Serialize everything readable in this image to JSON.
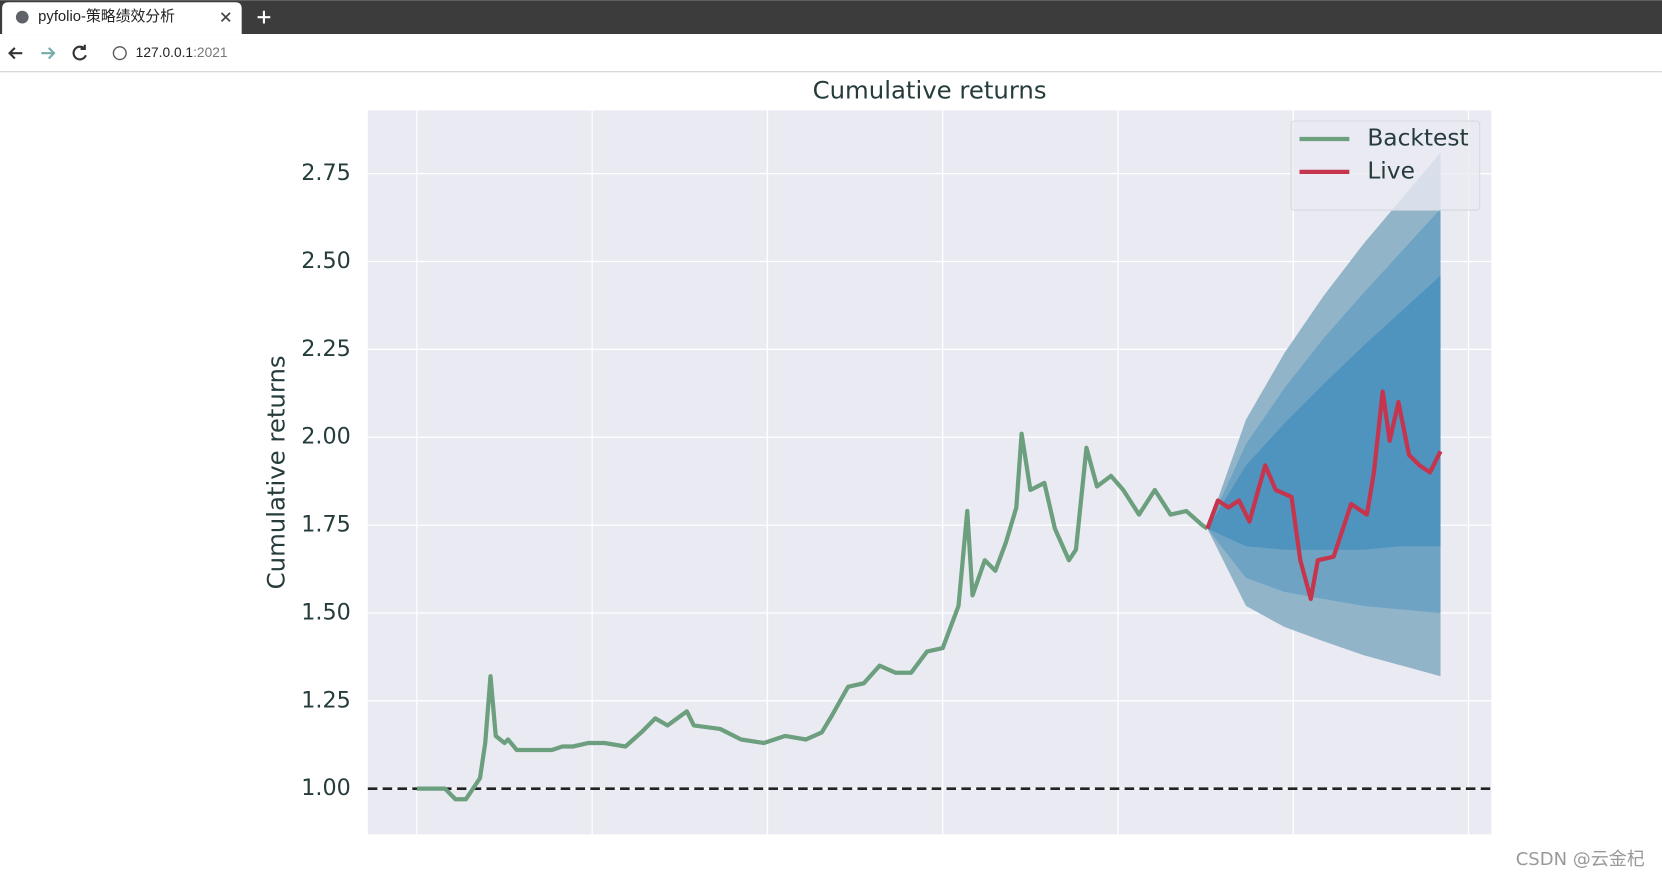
{
  "browser": {
    "tab_title": "pyfolio-策略绩效分析",
    "url_host": "127.0.0.1",
    "url_port": ":2021"
  },
  "watermark": "CSDN @云金杞",
  "chart_data": {
    "type": "line",
    "title": "Cumulative returns",
    "y_label": "Cumulative returns",
    "xlim": [
      -28,
      613
    ],
    "xticks": [
      0,
      100,
      200,
      300,
      400,
      500,
      600
    ],
    "ylim": [
      0.87,
      2.93
    ],
    "yticks": [
      {
        "value": 1,
        "label": "1.00"
      },
      {
        "value": 1.25,
        "label": "1.25"
      },
      {
        "value": 1.5,
        "label": "1.50"
      },
      {
        "value": 1.75,
        "label": "1.75"
      },
      {
        "value": 2,
        "label": "2.00"
      },
      {
        "value": 2.25,
        "label": "2.25"
      },
      {
        "value": 2.5,
        "label": "2.50"
      },
      {
        "value": 2.75,
        "label": "2.75"
      }
    ],
    "grid": true,
    "baseline": 1,
    "legend": "upper right",
    "bands": [
      {
        "color": "#91b4c9",
        "x": [
          451,
          473,
          495,
          517,
          540,
          562,
          584
        ],
        "upper": [
          1.74,
          2.05,
          2.24,
          2.4,
          2.55,
          2.68,
          2.81
        ],
        "lower": [
          1.74,
          1.52,
          1.46,
          1.42,
          1.38,
          1.35,
          1.32
        ]
      },
      {
        "color": "#6fa3c3",
        "x": [
          451,
          473,
          495,
          517,
          540,
          562,
          584
        ],
        "upper": [
          1.74,
          1.98,
          2.14,
          2.28,
          2.41,
          2.53,
          2.65
        ],
        "lower": [
          1.74,
          1.6,
          1.56,
          1.54,
          1.52,
          1.51,
          1.5
        ]
      },
      {
        "color": "#4f93bf",
        "x": [
          451,
          473,
          495,
          517,
          540,
          562,
          584
        ],
        "upper": [
          1.74,
          1.92,
          2.04,
          2.15,
          2.26,
          2.36,
          2.46
        ],
        "lower": [
          1.74,
          1.69,
          1.68,
          1.68,
          1.68,
          1.69,
          1.69
        ]
      }
    ],
    "series": [
      {
        "name": "Backtest",
        "color": "#6b9f7e",
        "x": [
          0,
          16,
          22,
          28,
          36,
          39,
          42,
          45,
          50,
          52,
          57,
          65,
          77,
          83,
          89,
          98,
          107,
          119,
          128,
          136,
          143,
          154,
          158,
          173,
          185,
          198,
          210,
          222,
          231,
          237,
          246,
          255,
          264,
          273,
          282,
          291,
          300,
          309,
          314,
          317,
          324,
          330,
          336,
          342,
          345,
          350,
          358,
          364,
          372,
          376,
          382,
          388,
          396,
          403,
          412,
          421,
          430,
          439,
          448,
          451
        ],
        "values": [
          1.0,
          1.0,
          0.97,
          0.97,
          1.03,
          1.13,
          1.32,
          1.15,
          1.13,
          1.14,
          1.11,
          1.11,
          1.11,
          1.12,
          1.12,
          1.13,
          1.13,
          1.12,
          1.16,
          1.2,
          1.18,
          1.22,
          1.18,
          1.17,
          1.14,
          1.13,
          1.15,
          1.14,
          1.16,
          1.21,
          1.29,
          1.3,
          1.35,
          1.33,
          1.33,
          1.39,
          1.4,
          1.52,
          1.79,
          1.55,
          1.65,
          1.62,
          1.7,
          1.8,
          2.01,
          1.85,
          1.87,
          1.74,
          1.65,
          1.68,
          1.97,
          1.86,
          1.89,
          1.85,
          1.78,
          1.85,
          1.78,
          1.79,
          1.75,
          1.74
        ]
      },
      {
        "name": "Live",
        "color": "#c5354e",
        "x": [
          451,
          457,
          463,
          469,
          475,
          480,
          484,
          490,
          499,
          504,
          510,
          514,
          523,
          533,
          542,
          546,
          551,
          555,
          560,
          566,
          572,
          578,
          584
        ],
        "values": [
          1.74,
          1.82,
          1.8,
          1.82,
          1.76,
          1.85,
          1.92,
          1.85,
          1.83,
          1.65,
          1.54,
          1.65,
          1.66,
          1.81,
          1.78,
          1.9,
          2.13,
          1.99,
          2.1,
          1.95,
          1.92,
          1.9,
          1.96
        ]
      }
    ]
  }
}
